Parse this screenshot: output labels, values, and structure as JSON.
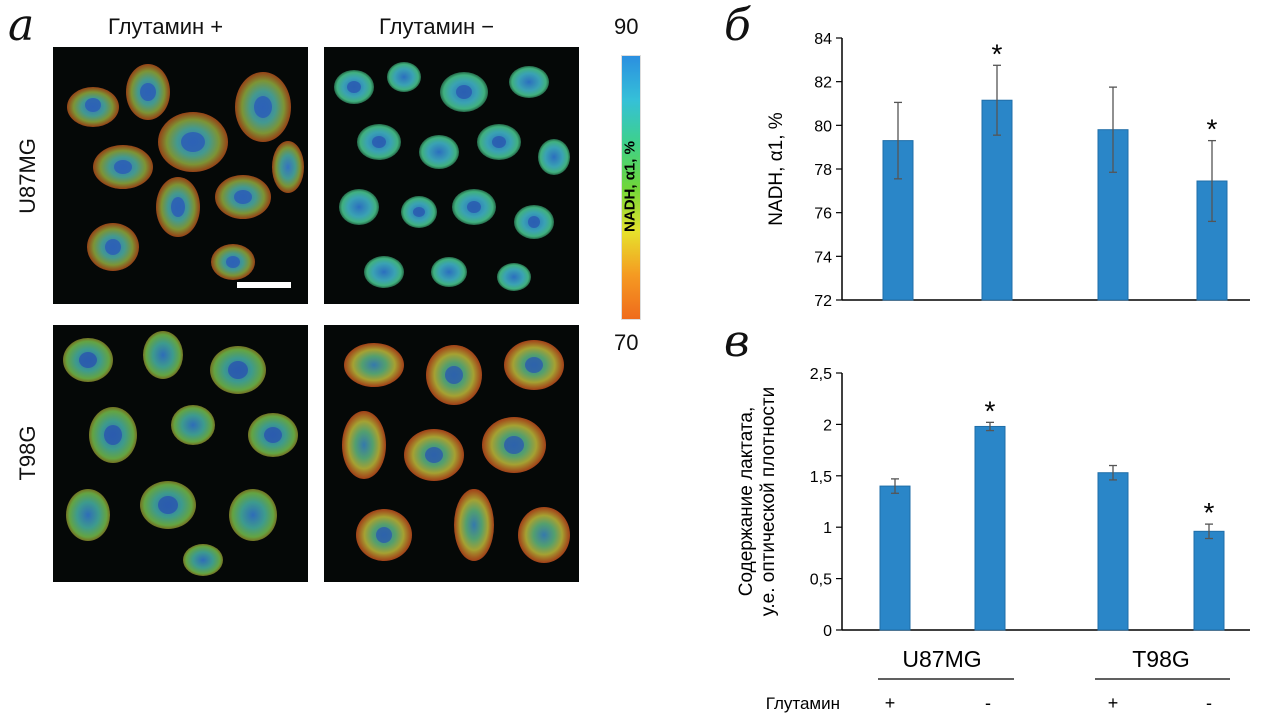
{
  "panel_a": {
    "letter": "а",
    "col_titles": [
      "Глутамин +",
      "Глутамин −"
    ],
    "row_labels": [
      "U87MG",
      "T98G"
    ],
    "colorbar": {
      "max": "90",
      "min": "70",
      "label": "NADH, α1, %",
      "colors": [
        "#2b8fe0",
        "#35c0d8",
        "#3ed18a",
        "#6fd63a",
        "#e6e22c",
        "#f59a22",
        "#ef6b1c"
      ]
    }
  },
  "panel_b": {
    "letter": "б"
  },
  "panel_c": {
    "letter": "в"
  },
  "chart_data": [
    {
      "type": "bar",
      "panel": "б",
      "ylabel": "NADH, α1, %",
      "ylim": [
        72,
        84
      ],
      "yticks": [
        "72",
        "74",
        "76",
        "78",
        "80",
        "82",
        "84"
      ],
      "values": [
        79.3,
        81.15,
        79.8,
        77.45
      ],
      "errors": [
        1.75,
        1.6,
        1.95,
        1.85
      ],
      "significance": [
        "",
        "*",
        "",
        "*"
      ],
      "bar_color": "#2a86c8"
    },
    {
      "type": "bar",
      "panel": "в",
      "ylabel": [
        "Содержание лактата,",
        "у.е. оптической плотности"
      ],
      "ylim": [
        0,
        2.5
      ],
      "yticks": [
        "0",
        "0,5",
        "1",
        "1,5",
        "2",
        "2,5"
      ],
      "values": [
        1.4,
        1.98,
        1.53,
        0.96
      ],
      "errors": [
        0.07,
        0.04,
        0.07,
        0.07
      ],
      "significance": [
        "",
        "*",
        "",
        "*"
      ],
      "groups": [
        "U87MG",
        "T98G"
      ],
      "glutamine_label": "Глутамин",
      "glutamine_signs": [
        "+",
        "-",
        "+",
        "-"
      ],
      "bar_color": "#2a86c8"
    }
  ]
}
